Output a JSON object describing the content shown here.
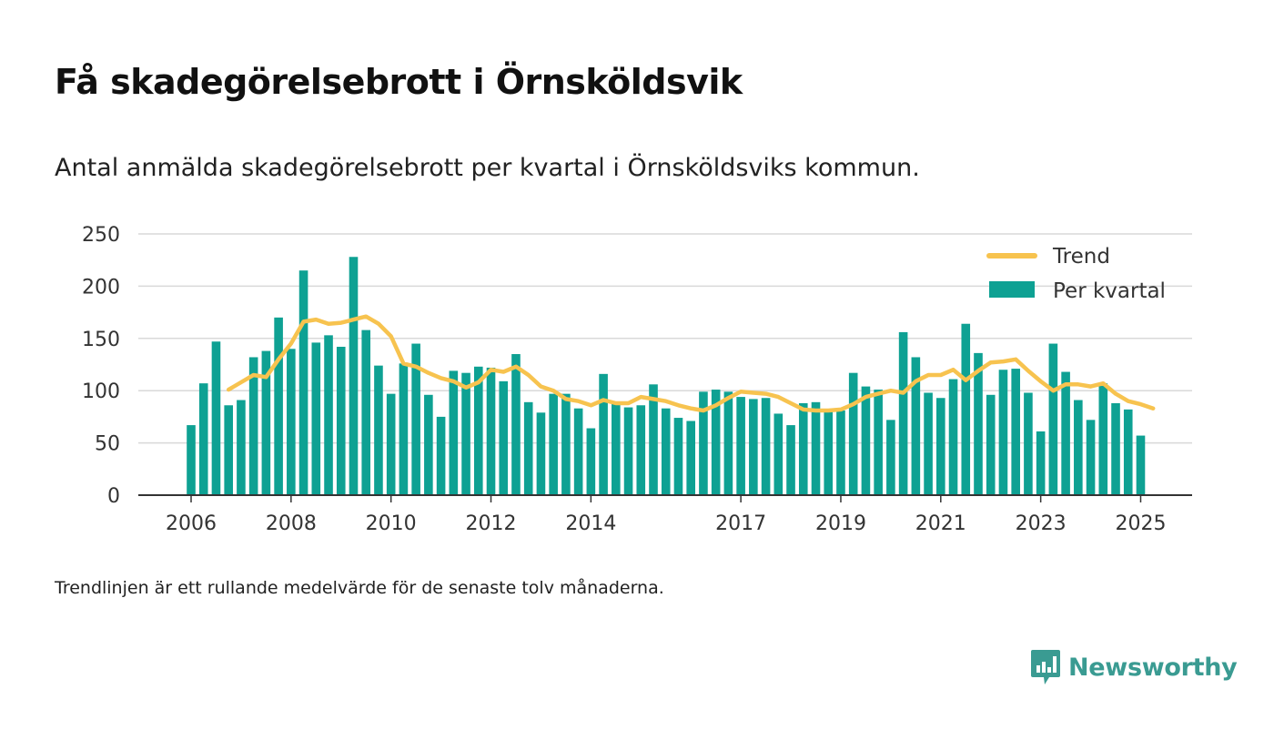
{
  "header": {
    "title": "Få skadegörelsebrott i Örnsköldsvik",
    "subtitle": "Antal anmälda skadegörelsebrott per kvartal i Örnsköldsviks kommun."
  },
  "footnote": "Trendlinjen är ett rullande medelvärde för de senaste tolv månaderna.",
  "brand": {
    "name": "Newsworthy",
    "icon": "newsworthy-logo-icon",
    "color": "#3a9b92"
  },
  "chart_data": {
    "type": "bar",
    "x_start": "2006-01",
    "x_period": "quarter",
    "x_ticks": [
      "2006",
      "2008",
      "2010",
      "2012",
      "2014",
      "2017",
      "2019",
      "2021",
      "2023",
      "2025"
    ],
    "y_ticks": [
      "0",
      "50",
      "100",
      "150",
      "200",
      "250"
    ],
    "ylim": [
      0,
      250
    ],
    "grid": true,
    "legend_position": "top-right",
    "colors": {
      "bars": "#0ea193",
      "trend": "#f7c34f",
      "grid": "#d9d9d9",
      "axis": "#333333"
    },
    "series": [
      {
        "name": "Per kvartal",
        "type": "bar",
        "values": [
          67,
          107,
          147,
          86,
          91,
          132,
          138,
          170,
          140,
          215,
          146,
          153,
          142,
          228,
          158,
          124,
          97,
          126,
          145,
          96,
          75,
          119,
          117,
          123,
          122,
          109,
          135,
          89,
          79,
          97,
          97,
          83,
          64,
          116,
          89,
          84,
          86,
          106,
          83,
          74,
          71,
          99,
          101,
          99,
          94,
          92,
          93,
          78,
          67,
          88,
          89,
          81,
          81,
          117,
          104,
          101,
          72,
          156,
          132,
          98,
          93,
          111,
          164,
          136,
          96,
          120,
          121,
          98,
          61,
          145,
          118,
          91,
          72,
          107,
          88,
          82,
          57
        ]
      },
      {
        "name": "Trend",
        "type": "line",
        "start_index": 3,
        "values": [
          101,
          108,
          115,
          113,
          130,
          145,
          166,
          168,
          164,
          165,
          168,
          171,
          164,
          152,
          126,
          123,
          117,
          112,
          109,
          103,
          108,
          120,
          118,
          123,
          115,
          104,
          100,
          92,
          90,
          86,
          91,
          88,
          88,
          94,
          92,
          90,
          86,
          83,
          81,
          86,
          93,
          99,
          98,
          97,
          94,
          88,
          82,
          81,
          81,
          82,
          87,
          94,
          97,
          100,
          98,
          109,
          115,
          115,
          120,
          110,
          119,
          127,
          128,
          130,
          119,
          109,
          100,
          106,
          106,
          104,
          107,
          97,
          90,
          87,
          83
        ]
      }
    ]
  }
}
